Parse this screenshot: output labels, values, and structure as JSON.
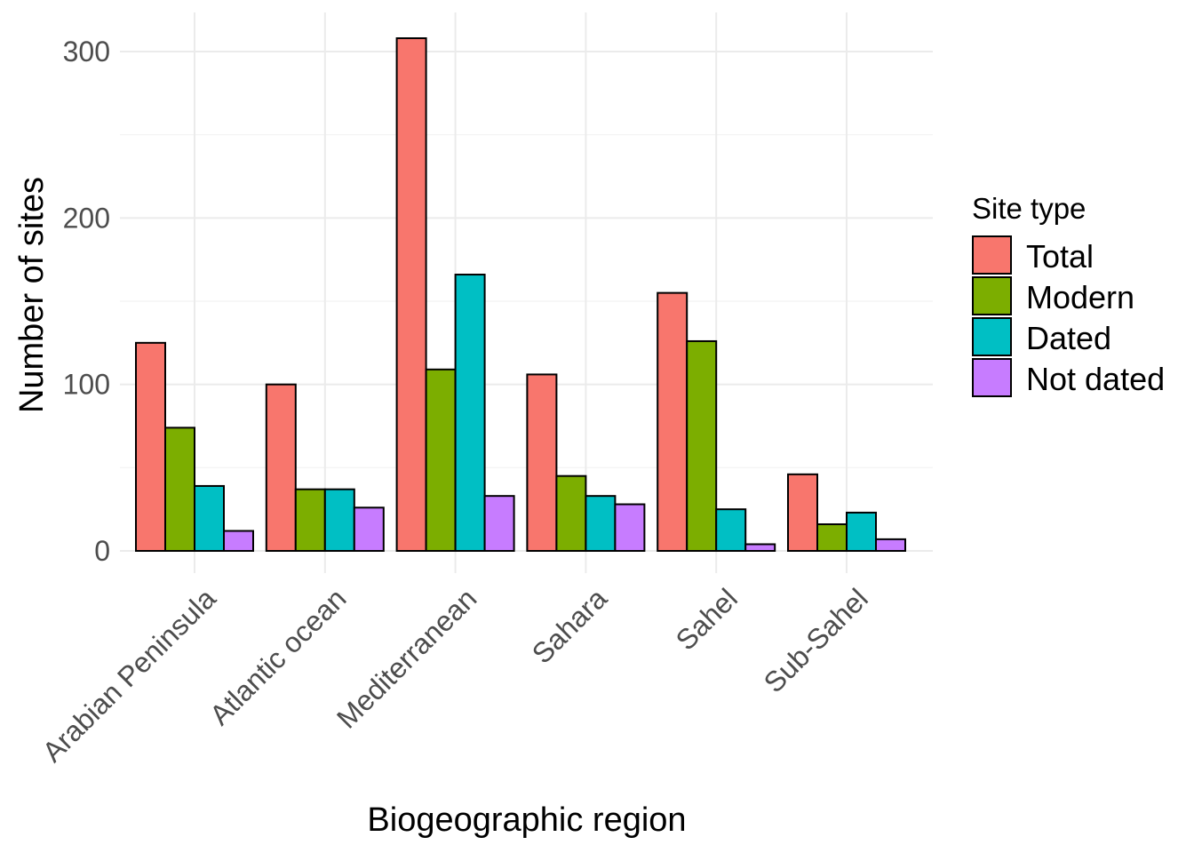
{
  "chart_data": {
    "type": "bar",
    "xlabel": "Biogeographic region",
    "ylabel": "Number of sites",
    "ylim": [
      0,
      300
    ],
    "yticks": [
      0,
      100,
      200,
      300
    ],
    "grid": true,
    "legend": {
      "title": "Site type",
      "position": "right"
    },
    "categories": [
      "Arabian Peninsula",
      "Atlantic ocean",
      "Mediterranean",
      "Sahara",
      "Sahel",
      "Sub-Sahel"
    ],
    "series": [
      {
        "name": "Total",
        "color": "#F8766D",
        "values": [
          125,
          100,
          308,
          106,
          155,
          46
        ]
      },
      {
        "name": "Modern",
        "color": "#7CAE00",
        "values": [
          74,
          37,
          109,
          45,
          126,
          16
        ]
      },
      {
        "name": "Dated",
        "color": "#00BFC4",
        "values": [
          39,
          37,
          166,
          33,
          25,
          23
        ]
      },
      {
        "name": "Not dated",
        "color": "#C77CFF",
        "values": [
          12,
          26,
          33,
          28,
          4,
          7
        ]
      }
    ]
  }
}
